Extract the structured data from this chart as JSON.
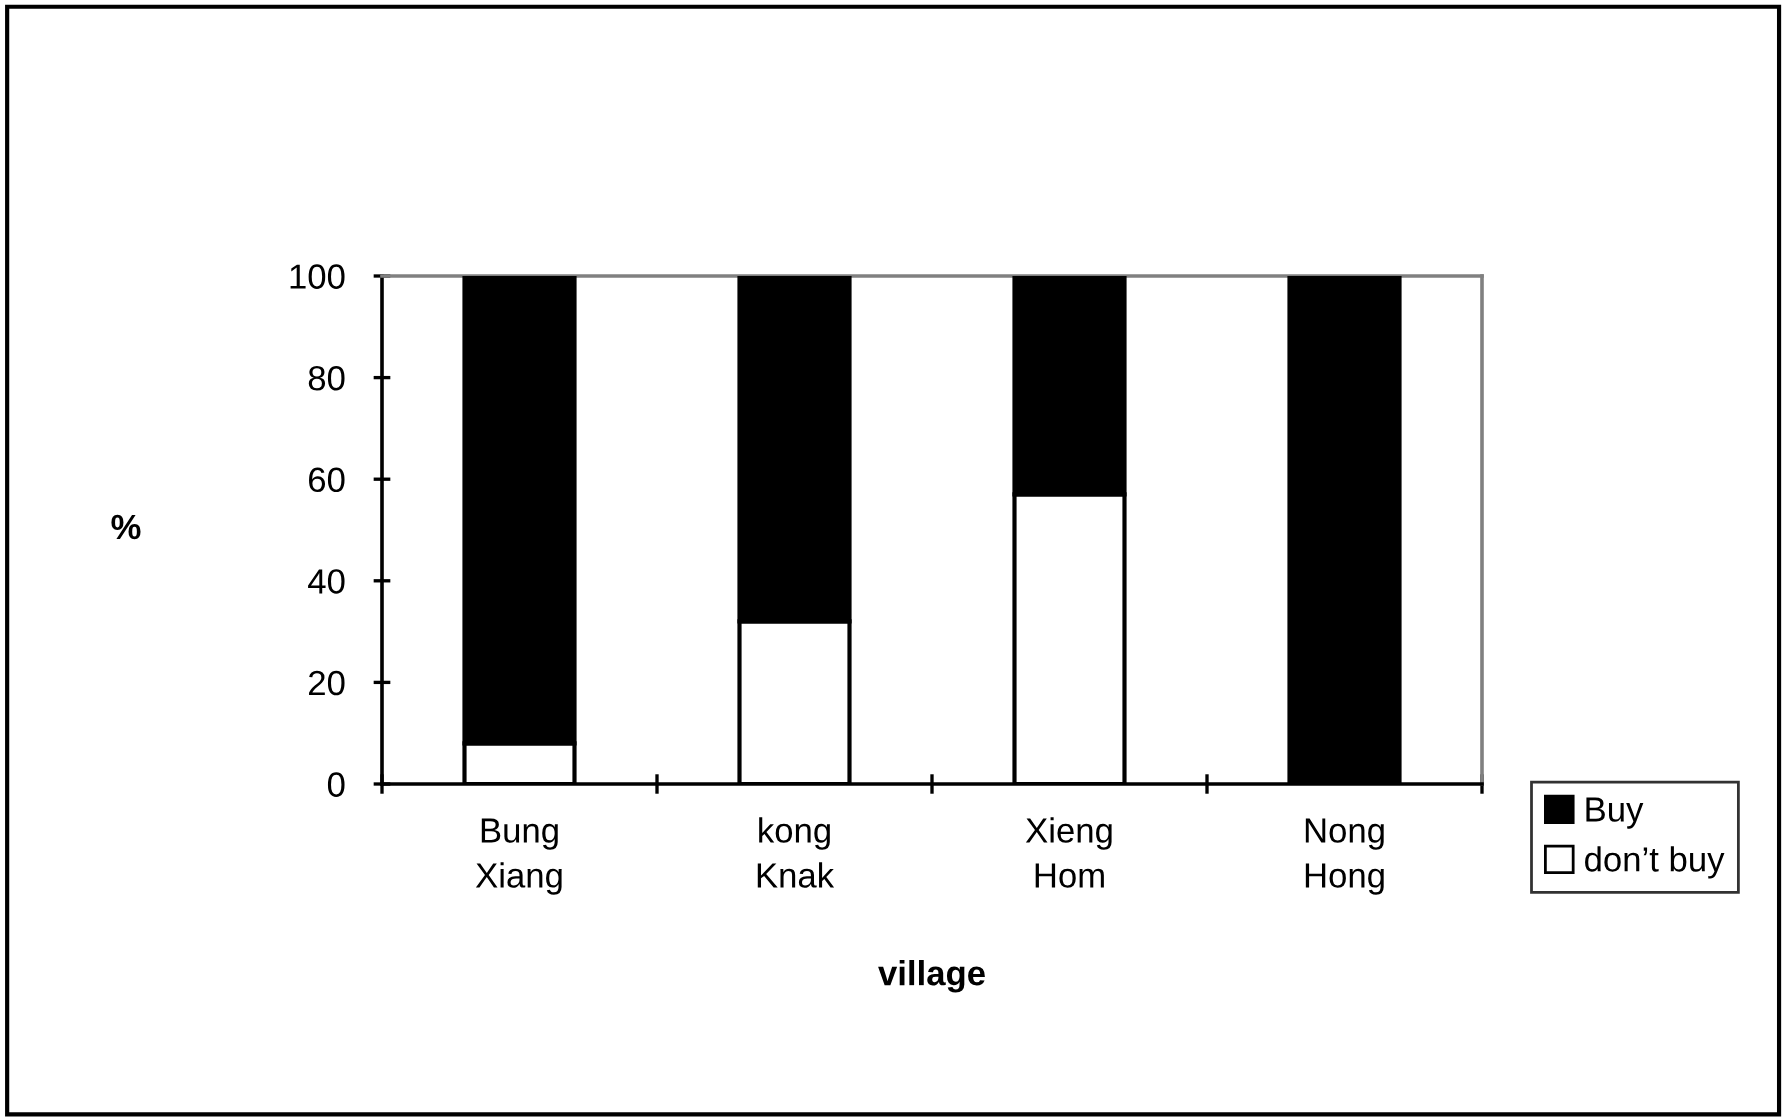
{
  "chart_data": {
    "type": "bar",
    "stacked": true,
    "categories": [
      "Bung\nXiang",
      "kong\nKnak",
      "Xieng\nHom",
      "Nong\nHong"
    ],
    "series": [
      {
        "name": "don’t buy",
        "color": "#ffffff",
        "values": [
          8,
          32,
          57,
          0
        ]
      },
      {
        "name": "Buy",
        "color": "#000000",
        "values": [
          92,
          68,
          43,
          100
        ]
      }
    ],
    "xlabel": "village",
    "ylabel": "%",
    "ylim": [
      0,
      100
    ],
    "yticks": [
      0,
      20,
      40,
      60,
      80,
      100
    ],
    "legend": "right"
  }
}
